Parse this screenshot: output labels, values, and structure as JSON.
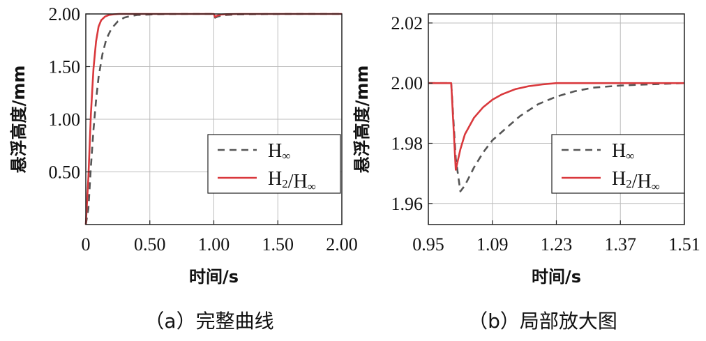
{
  "chart_data": [
    {
      "type": "line",
      "caption": "（a）完整曲线",
      "xlabel": "时间/s",
      "ylabel": "悬浮高度/mm",
      "xlim": [
        0,
        2.0
      ],
      "ylim": [
        0,
        2.0
      ],
      "xticks": [
        "0",
        "0.50",
        "1.00",
        "1.50",
        "2.00"
      ],
      "yticks": [
        "0.50",
        "1.00",
        "1.50",
        "2.00"
      ],
      "grid": true,
      "legend_position": "bottom-right",
      "series": [
        {
          "name": "H∞",
          "color": "#555555",
          "style": "dashed",
          "x": [
            0,
            0.02,
            0.04,
            0.06,
            0.08,
            0.1,
            0.13,
            0.16,
            0.2,
            0.25,
            0.3,
            0.35,
            0.4,
            0.5,
            0.6,
            0.8,
            1.0,
            1.01,
            1.03,
            1.06,
            1.1,
            1.2,
            1.4,
            1.7,
            2.0
          ],
          "y": [
            0,
            0.15,
            0.55,
            0.9,
            1.18,
            1.4,
            1.62,
            1.76,
            1.86,
            1.93,
            1.965,
            1.98,
            1.99,
            1.995,
            1.998,
            2.0,
            2.0,
            1.964,
            1.975,
            1.985,
            1.99,
            1.996,
            1.999,
            2.0,
            2.0
          ]
        },
        {
          "name": "H2/H∞",
          "color": "#d9383c",
          "style": "solid",
          "x": [
            0,
            0.02,
            0.04,
            0.06,
            0.08,
            0.1,
            0.12,
            0.15,
            0.18,
            0.22,
            0.26,
            0.3,
            0.4,
            0.6,
            1.0,
            1.01,
            1.03,
            1.06,
            1.1,
            1.2,
            1.5,
            2.0
          ],
          "y": [
            0,
            0.45,
            1.05,
            1.48,
            1.74,
            1.88,
            1.94,
            1.975,
            1.99,
            1.997,
            2.0,
            2.0,
            2.0,
            2.0,
            2.0,
            1.971,
            1.985,
            1.995,
            1.998,
            2.0,
            2.0,
            2.0
          ]
        }
      ]
    },
    {
      "type": "line",
      "caption": "（b）局部放大图",
      "xlabel": "时间/s",
      "ylabel": "悬浮高度/mm",
      "xlim": [
        0.95,
        1.51
      ],
      "ylim": [
        1.953,
        2.023
      ],
      "xticks": [
        "0.95",
        "1.09",
        "1.23",
        "1.37",
        "1.51"
      ],
      "yticks": [
        "1.96",
        "1.98",
        "2.00",
        "2.02"
      ],
      "grid": true,
      "legend_position": "bottom-right",
      "series": [
        {
          "name": "H∞",
          "color": "#555555",
          "style": "dashed",
          "x": [
            0.95,
            1.0,
            1.0,
            1.01,
            1.02,
            1.03,
            1.05,
            1.07,
            1.09,
            1.12,
            1.15,
            1.19,
            1.23,
            1.27,
            1.31,
            1.37,
            1.43,
            1.51
          ],
          "y": [
            2.0,
            2.0,
            2.0,
            1.975,
            1.964,
            1.966,
            1.972,
            1.977,
            1.981,
            1.985,
            1.989,
            1.993,
            1.9955,
            1.9973,
            1.9985,
            1.9992,
            1.9996,
            2.0
          ]
        },
        {
          "name": "H2/H∞",
          "color": "#d9383c",
          "style": "solid",
          "x": [
            0.95,
            1.0,
            1.0,
            1.01,
            1.02,
            1.03,
            1.05,
            1.07,
            1.09,
            1.11,
            1.14,
            1.17,
            1.2,
            1.23,
            1.27,
            1.51
          ],
          "y": [
            2.0,
            2.0,
            2.0,
            1.9712,
            1.978,
            1.983,
            1.9885,
            1.992,
            1.9945,
            1.9962,
            1.998,
            1.999,
            1.9996,
            2.0,
            2.0,
            2.0
          ]
        }
      ]
    }
  ]
}
